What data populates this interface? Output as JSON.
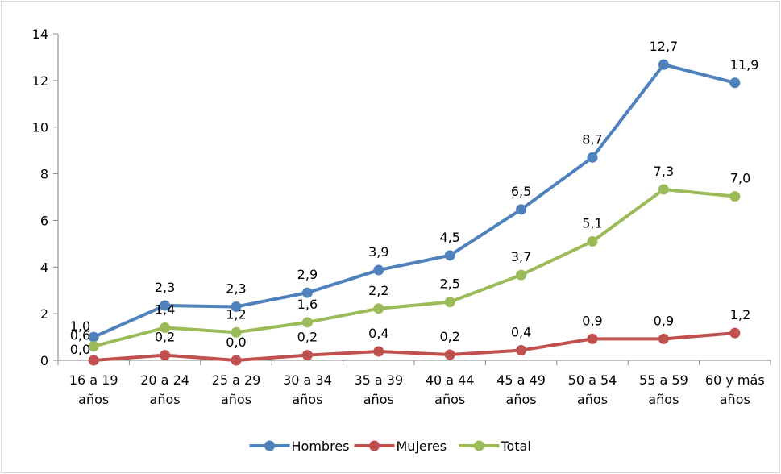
{
  "chart_data": {
    "type": "line",
    "title": "",
    "xlabel": "",
    "ylabel": "",
    "ylim": [
      0,
      14
    ],
    "yticks": [
      0,
      2,
      4,
      6,
      8,
      10,
      12,
      14
    ],
    "grid": false,
    "legend_position": "bottom",
    "categories": [
      [
        "16 a 19",
        "años"
      ],
      [
        "20 a 24",
        "años"
      ],
      [
        "25 a 29",
        "años"
      ],
      [
        "30 a 34",
        "años"
      ],
      [
        "35 a 39",
        "años"
      ],
      [
        "40 a 44",
        "años"
      ],
      [
        "45 a 49",
        "años"
      ],
      [
        "50 a 54",
        "años"
      ],
      [
        "55 a 59",
        "años"
      ],
      [
        "60 y más",
        "años"
      ]
    ],
    "series": [
      {
        "name": "Hombres",
        "color": "#4f81bd",
        "values": [
          1.0,
          2.35,
          2.3,
          2.9,
          3.87,
          4.5,
          6.47,
          8.7,
          12.68,
          11.9
        ],
        "labels": [
          "1,0",
          "2,3",
          "2,3",
          "2,9",
          "3,9",
          "4,5",
          "6,5",
          "8,7",
          "12,7",
          "11,9"
        ]
      },
      {
        "name": "Mujeres",
        "color": "#c0504d",
        "values": [
          0.0,
          0.22,
          0.0,
          0.22,
          0.38,
          0.24,
          0.43,
          0.92,
          0.92,
          1.17
        ],
        "labels": [
          "0,0",
          "0,2",
          "0,0",
          "0,2",
          "0,4",
          "0,2",
          "0,4",
          "0,9",
          "0,9",
          "1,2"
        ]
      },
      {
        "name": "Total",
        "color": "#9bbb59",
        "values": [
          0.6,
          1.4,
          1.2,
          1.63,
          2.22,
          2.5,
          3.66,
          5.1,
          7.33,
          7.03
        ],
        "labels": [
          "0,6",
          "1,4",
          "1,2",
          "1,6",
          "2,2",
          "2,5",
          "3,7",
          "5,1",
          "7,3",
          "7,0"
        ]
      }
    ]
  }
}
